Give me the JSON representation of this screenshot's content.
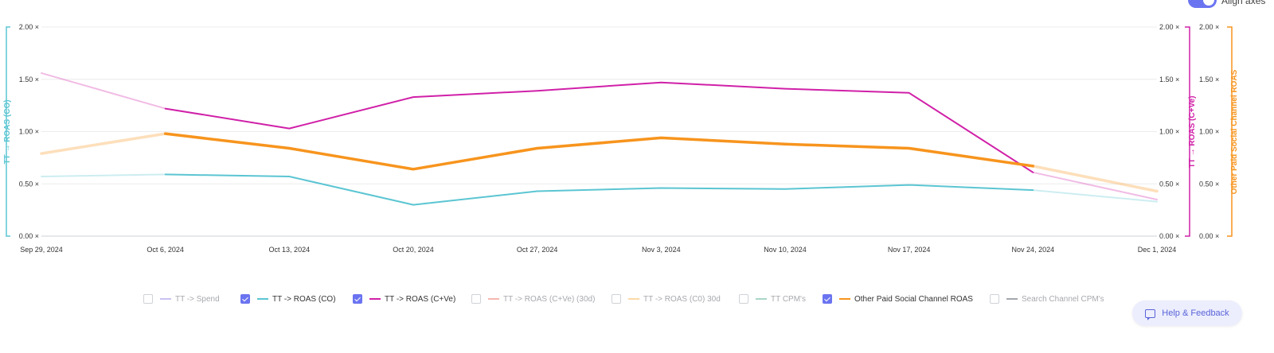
{
  "toggle": {
    "label": "Align axes",
    "on": true
  },
  "chart_data": {
    "type": "line",
    "categories": [
      "Sep 29, 2024",
      "Oct 6, 2024",
      "Oct 13, 2024",
      "Oct 20, 2024",
      "Oct 27, 2024",
      "Nov 3, 2024",
      "Nov 10, 2024",
      "Nov 17, 2024",
      "Nov 24, 2024",
      "Dec 1, 2024"
    ],
    "axes": {
      "left": {
        "title": "TT → ROAS (CO)",
        "ticks": [
          "0.00 ×",
          "0.50 ×",
          "1.00 ×",
          "1.50 ×",
          "2.00 ×"
        ],
        "range": [
          0,
          2
        ],
        "color": "#5bc5d2"
      },
      "right1": {
        "title": "TT → ROAS (C+Ve)",
        "ticks": [
          "0.00 ×",
          "0.50 ×",
          "1.00 ×",
          "1.50 ×",
          "2.00 ×"
        ],
        "range": [
          0,
          2
        ],
        "color": "#d020a8"
      },
      "right2": {
        "title": "Other Paid Social Channel ROAS",
        "ticks": [
          "0.00 ×",
          "0.50 ×",
          "1.00 ×",
          "1.50 ×",
          "2.00 ×"
        ],
        "range": [
          0,
          2
        ],
        "color": "#f7941d"
      }
    },
    "grid": true,
    "legend_position": "bottom",
    "series": [
      {
        "name": "TT -> ROAS (CO)",
        "color": "#5bc5d2",
        "values": [
          0.57,
          0.59,
          0.57,
          0.3,
          0.43,
          0.46,
          0.45,
          0.49,
          0.44,
          0.33
        ],
        "complete_from": 1,
        "complete_to": 8,
        "width": 2
      },
      {
        "name": "TT -> ROAS (C+Ve)",
        "color": "#d020a8",
        "values": [
          1.56,
          1.22,
          1.03,
          1.33,
          1.39,
          1.47,
          1.41,
          1.37,
          0.61,
          0.35
        ],
        "complete_from": 1,
        "complete_to": 8,
        "width": 2
      },
      {
        "name": "Other Paid Social Channel ROAS",
        "color": "#f7941d",
        "values": [
          0.79,
          0.98,
          0.84,
          0.64,
          0.84,
          0.94,
          0.88,
          0.84,
          0.67,
          0.43
        ],
        "complete_from": 1,
        "complete_to": 8,
        "width": 3.5
      }
    ]
  },
  "legend": [
    {
      "label": "TT -> Spend",
      "checked": false,
      "color": "#c9c2f2"
    },
    {
      "label": "TT -> ROAS (CO)",
      "checked": true,
      "color": "#5bc5d2"
    },
    {
      "label": "TT -> ROAS (C+Ve)",
      "checked": true,
      "color": "#d020a8"
    },
    {
      "label": "TT -> ROAS (C+Ve) (30d)",
      "checked": false,
      "color": "#f5b8b0"
    },
    {
      "label": "TT -> ROAS (C0) 30d",
      "checked": false,
      "color": "#fbd9a8"
    },
    {
      "label": "TT CPM's",
      "checked": false,
      "color": "#a9d5c6"
    },
    {
      "label": "Other Paid Social Channel ROAS",
      "checked": true,
      "color": "#f7941d"
    },
    {
      "label": "Search Channel CPM's",
      "checked": false,
      "color": "#a4a7ad"
    }
  ],
  "help": {
    "label": "Help & Feedback",
    "icon": "chat-icon"
  }
}
